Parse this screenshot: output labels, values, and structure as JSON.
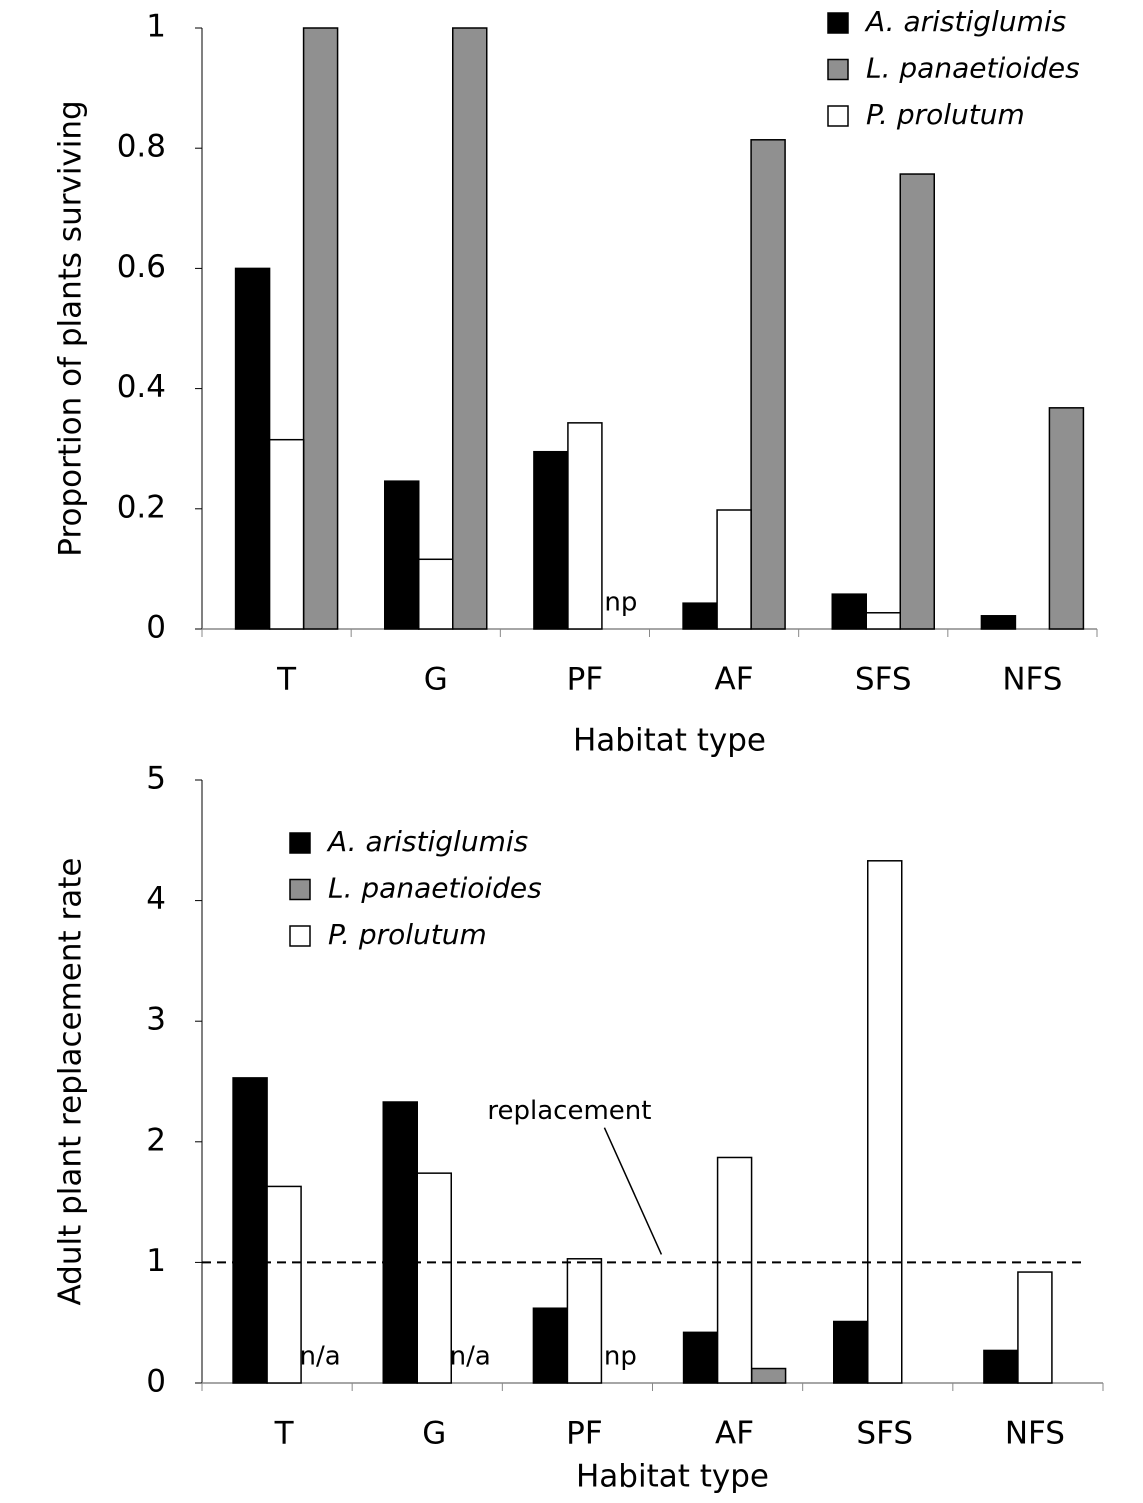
{
  "chart_data": [
    {
      "type": "bar",
      "y_label": "Proportion of plants surviving",
      "x_label": "Habitat type",
      "categories": [
        "T",
        "G",
        "PF",
        "AF",
        "SFS",
        "NFS"
      ],
      "series": [
        {
          "name": "A. aristiglumis",
          "color": "#000000",
          "values": [
            0.6,
            0.246,
            0.295,
            0.043,
            0.058,
            0.022
          ]
        },
        {
          "name": "L. panaetioides",
          "color": "#909090",
          "values": [
            1,
            1,
            null,
            0.814,
            0.757,
            0.368
          ]
        },
        {
          "name": "P. prolutum",
          "color": "#ffffff",
          "values": [
            0.315,
            0.116,
            0.343,
            0.198,
            0.027,
            null
          ]
        }
      ],
      "ylim": [
        0,
        1
      ],
      "yticks": [
        0,
        0.2,
        0.4,
        0.6,
        0.8,
        1
      ],
      "grid": false,
      "legend": "upper right",
      "annotations": [
        {
          "text": "np",
          "x": "PF"
        }
      ]
    },
    {
      "type": "bar",
      "y_label": "Adult plant replacement rate",
      "x_label": "Habitat type",
      "categories": [
        "T",
        "G",
        "PF",
        "AF",
        "SFS",
        "NFS"
      ],
      "series": [
        {
          "name": "A. aristiglumis",
          "color": "#000000",
          "values": [
            2.53,
            2.33,
            0.62,
            0.42,
            0.51,
            0.27
          ]
        },
        {
          "name": "L. panaetioides",
          "color": "#909090",
          "values": [
            null,
            null,
            null,
            0.12,
            null,
            null
          ]
        },
        {
          "name": "P. prolutum",
          "color": "#ffffff",
          "values": [
            1.63,
            1.74,
            1.03,
            1.87,
            4.33,
            0.92
          ]
        }
      ],
      "ylim": [
        0,
        5
      ],
      "yticks": [
        0,
        1,
        2,
        3,
        4,
        5
      ],
      "grid": false,
      "legend": "upper left",
      "annotations": [
        {
          "text": "n/a",
          "x": "T"
        },
        {
          "text": "n/a",
          "x": "G"
        },
        {
          "text": "np",
          "x": "PF"
        }
      ],
      "reference_line": {
        "value": 1,
        "label": "replacement"
      }
    }
  ]
}
